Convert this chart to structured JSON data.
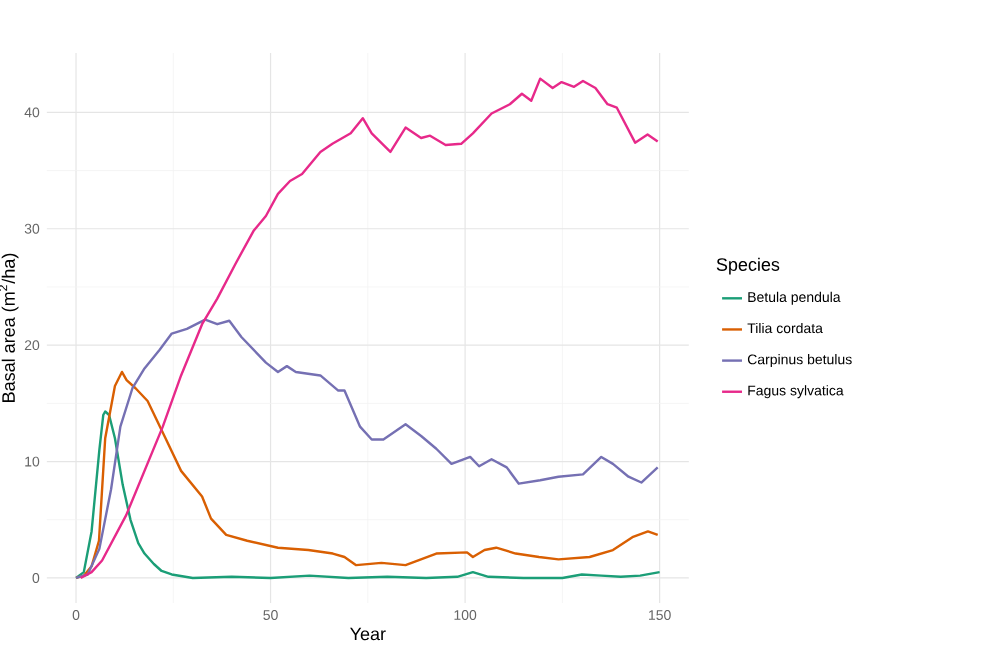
{
  "chart_data": {
    "type": "line",
    "xlabel": "Year",
    "ylabel": "Basal area (m$^{2}$/ha)",
    "legend_title": "Species",
    "legend": "right",
    "grid": true,
    "marker": "none",
    "line_style": "solid",
    "xlim": [
      -7.5,
      157.5
    ],
    "ylim": [
      -2.15,
      45.1
    ],
    "xticks": [
      0,
      {
        "value": 25,
        "label": null
      },
      50,
      {
        "value": 75,
        "label": null
      },
      100,
      {
        "value": 125,
        "label": null
      },
      150
    ],
    "yticks": [
      0,
      {
        "value": 5,
        "label": null
      },
      10,
      {
        "value": 15,
        "label": null
      },
      20,
      {
        "value": 25,
        "label": null
      },
      30,
      {
        "value": 35,
        "label": null
      },
      40
    ],
    "series": [
      {
        "name": "Betula pendula",
        "color": "#1b9e77",
        "x": [
          0,
          2,
          4,
          6,
          7,
          7.5,
          8.5,
          10,
          12,
          14,
          16,
          17.6,
          20,
          22,
          24.6,
          30,
          40,
          50,
          60,
          70,
          80,
          90,
          98,
          102,
          106,
          115,
          125,
          130,
          135,
          140,
          145,
          150
        ],
        "values": [
          0,
          0.5,
          4,
          11,
          14,
          14.3,
          14,
          12,
          8,
          5,
          3,
          2.1,
          1.2,
          0.6,
          0.3,
          0,
          0.1,
          0,
          0.2,
          0,
          0.1,
          0,
          0.1,
          0.5,
          0.1,
          0,
          0,
          0.3,
          0.2,
          0.1,
          0.2,
          0.5
        ]
      },
      {
        "name": "Tilia cordata",
        "color": "#d95f02",
        "x": [
          0,
          2,
          4,
          5.9,
          7.5,
          10,
          11.8,
          13,
          15.3,
          18.4,
          23,
          27,
          32.4,
          34.7,
          38.6,
          44,
          51.9,
          59.7,
          66,
          69,
          72,
          78.5,
          84.7,
          92.6,
          100.5,
          102,
          105,
          108,
          113,
          119,
          124,
          132,
          138,
          143,
          147,
          149.5
        ],
        "values": [
          0,
          0.2,
          1,
          3.2,
          12,
          16.5,
          17.7,
          17,
          16.3,
          15.2,
          12,
          9.2,
          7,
          5.1,
          3.7,
          3.2,
          2.6,
          2.4,
          2.1,
          1.8,
          1.1,
          1.3,
          1.1,
          2.1,
          2.2,
          1.8,
          2.4,
          2.6,
          2.1,
          1.8,
          1.6,
          1.8,
          2.4,
          3.5,
          4,
          3.7
        ]
      },
      {
        "name": "Carpinus betulus",
        "color": "#7570b3",
        "x": [
          0,
          3,
          6,
          9,
          11.4,
          14.5,
          17.6,
          21.5,
          24.6,
          28.5,
          33.2,
          36.3,
          39.4,
          42.5,
          48.8,
          51.9,
          54.2,
          56.5,
          62.8,
          67.4,
          69,
          73,
          76,
          79,
          84.7,
          88.7,
          92.6,
          96.5,
          101.3,
          103.6,
          106.8,
          110.7,
          113.8,
          119.3,
          124,
          130.3,
          135,
          138,
          142,
          145.3,
          149.5
        ],
        "values": [
          0,
          0.3,
          2.5,
          7.6,
          13,
          16.3,
          18,
          19.6,
          21,
          21.4,
          22.2,
          21.8,
          22.1,
          20.7,
          18.5,
          17.7,
          18.2,
          17.7,
          17.4,
          16.1,
          16.1,
          13,
          11.9,
          11.9,
          13.2,
          12.2,
          11.1,
          9.8,
          10.4,
          9.6,
          10.2,
          9.5,
          8.1,
          8.4,
          8.7,
          8.9,
          10.4,
          9.8,
          8.7,
          8.2,
          9.5
        ]
      },
      {
        "name": "Fagus sylvatica",
        "color": "#e7298a",
        "x": [
          1.2,
          4,
          6.7,
          12.9,
          17.6,
          22.3,
          27,
          32.4,
          36.3,
          41,
          45.6,
          48.8,
          51.9,
          55,
          58.1,
          62.8,
          65.9,
          70.6,
          73.7,
          76,
          80.8,
          84.7,
          88.7,
          91,
          95,
          99,
          102,
          106.8,
          111.5,
          114.6,
          117,
          119.3,
          122.5,
          124.8,
          128,
          130.3,
          133.5,
          136.6,
          139,
          143.7,
          146.9,
          149.5
        ],
        "values": [
          0,
          0.5,
          1.5,
          5.4,
          9.2,
          13,
          17.4,
          21.8,
          24,
          27,
          29.8,
          31.1,
          33,
          34.1,
          34.7,
          36.6,
          37.3,
          38.2,
          39.5,
          38.2,
          36.6,
          38.7,
          37.8,
          38,
          37.2,
          37.3,
          38.2,
          39.9,
          40.7,
          41.6,
          41,
          42.9,
          42.1,
          42.6,
          42.2,
          42.7,
          42.1,
          40.7,
          40.4,
          37.4,
          38.1,
          37.5
        ]
      }
    ]
  }
}
